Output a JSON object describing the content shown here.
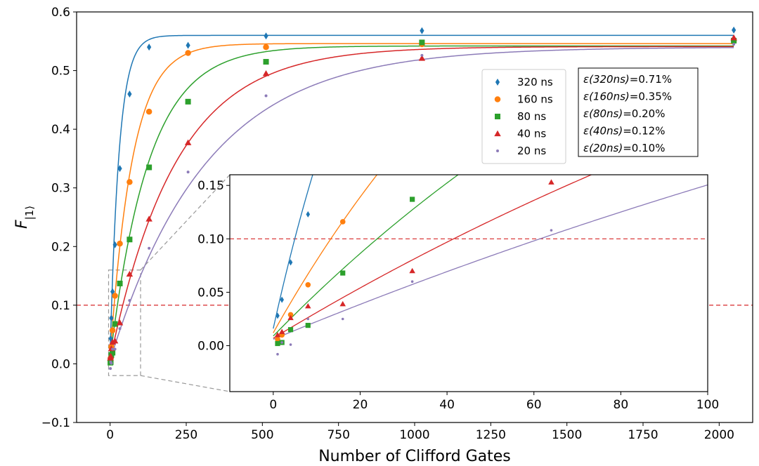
{
  "chart_data": {
    "type": "scatter",
    "xlabel": "Number of Clifford Gates",
    "ylabel": "F",
    "ylabel_subscript": "|1⟩",
    "xlim": [
      -110,
      2110
    ],
    "ylim": [
      -0.1,
      0.6
    ],
    "xticks": [
      0,
      250,
      500,
      750,
      1000,
      1250,
      1500,
      1750,
      2000
    ],
    "yticks": [
      -0.1,
      0.0,
      0.1,
      0.2,
      0.3,
      0.4,
      0.5,
      0.6
    ],
    "xtick_labels": [
      "0",
      "250",
      "500",
      "750",
      "1000",
      "1250",
      "1500",
      "1750",
      "2000"
    ],
    "ytick_labels": [
      "−0.1",
      "0.0",
      "0.1",
      "0.2",
      "0.3",
      "0.4",
      "0.5",
      "0.6"
    ],
    "threshold": 0.1,
    "series": [
      {
        "name": "320 ns",
        "color": "#1f77b4",
        "marker": "diamond",
        "fit": {
          "A": 0.56,
          "B": 0.016,
          "p": 0.9667
        },
        "x": [
          1,
          2,
          4,
          8,
          16,
          32,
          64,
          128,
          256,
          512,
          1024,
          2048
        ],
        "y": [
          0.028,
          0.043,
          0.078,
          0.123,
          0.203,
          0.333,
          0.46,
          0.54,
          0.543,
          0.559,
          0.568,
          0.569
        ]
      },
      {
        "name": "160 ns",
        "color": "#ff7f0e",
        "marker": "circle",
        "fit": {
          "A": 0.546,
          "B": 0.012,
          "p": 0.9865
        },
        "x": [
          1,
          2,
          4,
          8,
          16,
          32,
          64,
          128,
          256,
          512,
          1024,
          2048
        ],
        "y": [
          0.006,
          0.01,
          0.029,
          0.057,
          0.116,
          0.205,
          0.31,
          0.43,
          0.53,
          0.54,
          0.545,
          0.551
        ]
      },
      {
        "name": "80 ns",
        "color": "#2ca02c",
        "marker": "square",
        "fit": {
          "A": 0.542,
          "B": 0.009,
          "p": 0.9922
        },
        "x": [
          1,
          2,
          4,
          8,
          16,
          32,
          64,
          128,
          256,
          512,
          1024,
          2048
        ],
        "y": [
          0.002,
          0.003,
          0.015,
          0.019,
          0.068,
          0.137,
          0.212,
          0.335,
          0.447,
          0.515,
          0.548,
          0.551
        ]
      },
      {
        "name": "40 ns",
        "color": "#d62728",
        "marker": "triangle",
        "fit": {
          "A": 0.541,
          "B": 0.007,
          "p": 0.9954
        },
        "x": [
          1,
          2,
          4,
          8,
          16,
          32,
          64,
          128,
          256,
          512,
          1024,
          2048
        ],
        "y": [
          0.01,
          0.013,
          0.026,
          0.037,
          0.039,
          0.07,
          0.153,
          0.247,
          0.377,
          0.495,
          0.521,
          0.556
        ]
      },
      {
        "name": "20 ns",
        "color": "#8c7bb8",
        "marker": "dot",
        "fit": {
          "A": 0.54,
          "B": 0.006,
          "p": 0.99685
        },
        "x": [
          1,
          2,
          4,
          8,
          16,
          32,
          64,
          128,
          256,
          512,
          1024,
          2048
        ],
        "y": [
          -0.008,
          0.003,
          0.001,
          0.025,
          0.025,
          0.06,
          0.108,
          0.197,
          0.327,
          0.457,
          0.526,
          0.545
        ]
      }
    ],
    "annotations": [
      {
        "label": "ε",
        "italic": "(320ns)",
        "value": "=0.71%"
      },
      {
        "label": "ε",
        "italic": "(160ns)",
        "value": "=0.35%"
      },
      {
        "label": "ε",
        "italic": "(80ns)",
        "value": "=0.20%"
      },
      {
        "label": "ε",
        "italic": "(40ns)",
        "value": "=0.12%"
      },
      {
        "label": "ε",
        "italic": "(20ns)",
        "value": "=0.10%"
      }
    ],
    "inset": {
      "xlim": [
        -10,
        100
      ],
      "ylim": [
        -0.043,
        0.16
      ],
      "xticks": [
        0,
        20,
        40,
        60,
        80,
        100
      ],
      "yticks": [
        0.0,
        0.05,
        0.1,
        0.15
      ],
      "xtick_labels": [
        "0",
        "20",
        "40",
        "60",
        "80",
        "100"
      ],
      "ytick_labels": [
        "0.00",
        "0.05",
        "0.10",
        "0.15"
      ],
      "zoom_region": {
        "x": [
          -5,
          100
        ],
        "y": [
          -0.02,
          0.16
        ]
      }
    }
  }
}
